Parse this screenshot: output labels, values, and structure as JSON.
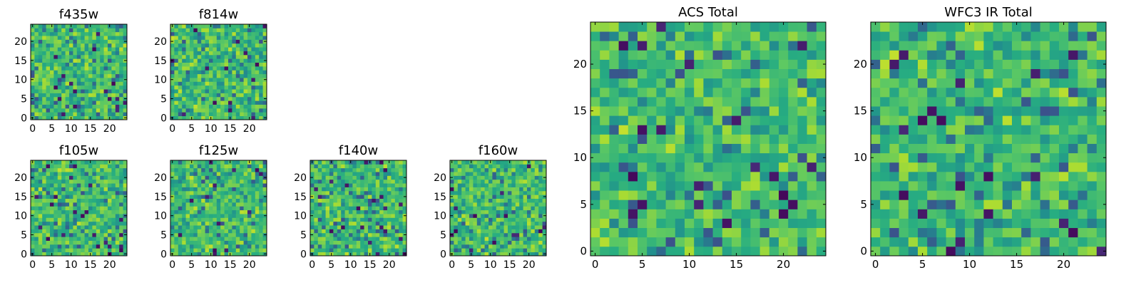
{
  "chart_data": [
    {
      "type": "heatmap",
      "title": "f435w",
      "grid_size": 25,
      "xticks": [
        "0",
        "5",
        "10",
        "15",
        "20"
      ],
      "yticks": [
        "0",
        "5",
        "10",
        "15",
        "20"
      ],
      "colormap": "viridis",
      "value_range": [
        0,
        1
      ],
      "seed": 11
    },
    {
      "type": "heatmap",
      "title": "f814w",
      "grid_size": 25,
      "xticks": [
        "0",
        "5",
        "10",
        "15",
        "20"
      ],
      "yticks": [
        "0",
        "5",
        "10",
        "15",
        "20"
      ],
      "colormap": "viridis",
      "value_range": [
        0,
        1
      ],
      "seed": 23
    },
    {
      "type": "heatmap",
      "title": "f105w",
      "grid_size": 25,
      "xticks": [
        "0",
        "5",
        "10",
        "15",
        "20"
      ],
      "yticks": [
        "0",
        "5",
        "10",
        "15",
        "20"
      ],
      "colormap": "viridis",
      "value_range": [
        0,
        1
      ],
      "seed": 37
    },
    {
      "type": "heatmap",
      "title": "f125w",
      "grid_size": 25,
      "xticks": [
        "0",
        "5",
        "10",
        "15",
        "20"
      ],
      "yticks": [
        "0",
        "5",
        "10",
        "15",
        "20"
      ],
      "colormap": "viridis",
      "value_range": [
        0,
        1
      ],
      "seed": 41
    },
    {
      "type": "heatmap",
      "title": "f140w",
      "grid_size": 25,
      "xticks": [
        "0",
        "5",
        "10",
        "15",
        "20"
      ],
      "yticks": [
        "0",
        "5",
        "10",
        "15",
        "20"
      ],
      "colormap": "viridis",
      "value_range": [
        0,
        1
      ],
      "seed": 53
    },
    {
      "type": "heatmap",
      "title": "f160w",
      "grid_size": 25,
      "xticks": [
        "0",
        "5",
        "10",
        "15",
        "20"
      ],
      "yticks": [
        "0",
        "5",
        "10",
        "15",
        "20"
      ],
      "colormap": "viridis",
      "value_range": [
        0,
        1
      ],
      "seed": 67
    },
    {
      "type": "heatmap",
      "title": "ACS Total",
      "grid_size": 25,
      "xticks": [
        "0",
        "5",
        "10",
        "15",
        "20"
      ],
      "yticks": [
        "0",
        "5",
        "10",
        "15",
        "20"
      ],
      "colormap": "viridis",
      "value_range": [
        0,
        1
      ],
      "seed": 71
    },
    {
      "type": "heatmap",
      "title": "WFC3 IR Total",
      "grid_size": 25,
      "xticks": [
        "0",
        "5",
        "10",
        "15",
        "20"
      ],
      "yticks": [
        "0",
        "5",
        "10",
        "15",
        "20"
      ],
      "colormap": "viridis",
      "value_range": [
        0,
        1
      ],
      "seed": 89
    }
  ]
}
